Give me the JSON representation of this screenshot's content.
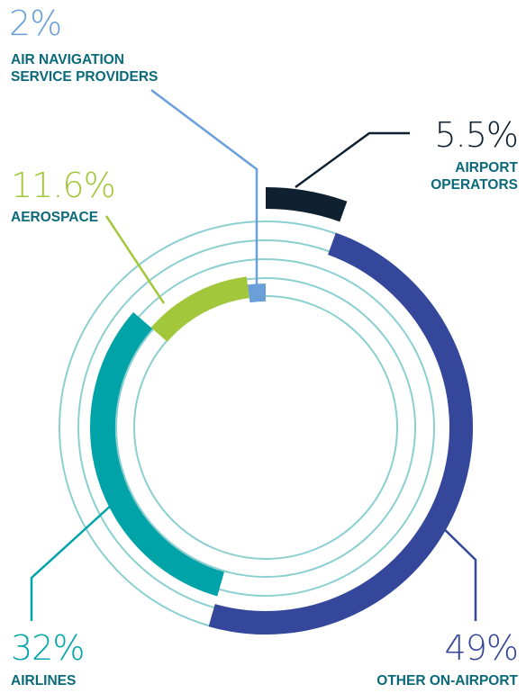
{
  "chart_data": {
    "type": "radial_bar",
    "categories": [
      "AIRPORT OPERATORS",
      "OTHER ON-AIRPORT",
      "AIRLINES",
      "AEROSPACE",
      "AIR NAVIGATION SERVICE PROVIDERS"
    ],
    "values": [
      5.5,
      49,
      32,
      11.6,
      2
    ],
    "value_labels": [
      "5.5%",
      "49%",
      "32%",
      "11.6%",
      "2%"
    ],
    "colors": [
      "#0f2130",
      "#35479a",
      "#00a3a8",
      "#a3c73a",
      "#6a9fd8"
    ]
  }
}
